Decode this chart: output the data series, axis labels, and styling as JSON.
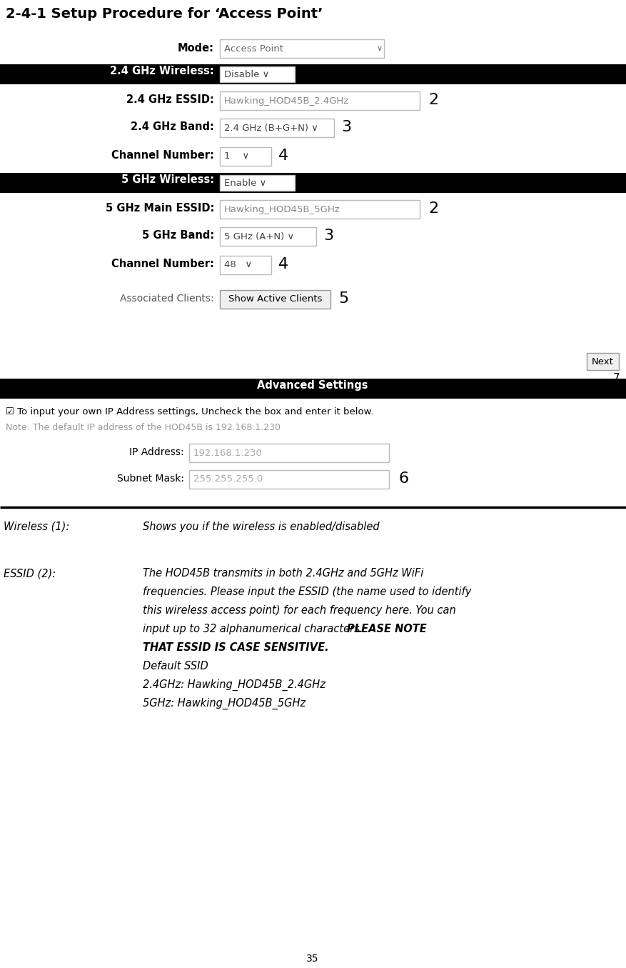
{
  "title": "2-4-1 Setup Procedure for ‘Access Point’",
  "bg_color": "#ffffff",
  "page_number": "35",
  "mode_label": "Mode:",
  "mode_value": "Access Point",
  "mode_dropdown_arrow": "∨",
  "band24_label": "2.4 GHz Wireless:",
  "band24_value": "Disable ∨",
  "essid24_label": "2.4 GHz ESSID:",
  "essid24_value": "Hawking_HOD45B_2.4GHz",
  "band24type_label": "2.4 GHz Band:",
  "band24type_value": "2.4 GHz (B+G+N) ∨",
  "channel24_label": "Channel Number:",
  "channel24_value": "1    ∨",
  "band5_label": "5 GHz Wireless:",
  "band5_value": "Enable ∨",
  "essid5_label": "5 GHz Main ESSID:",
  "essid5_value": "Hawking_HOD45B_5GHz",
  "band5type_label": "5 GHz Band:",
  "band5type_value": "5 GHz (A+N) ∨",
  "channel5_label": "Channel Number:",
  "channel5_value": "48   ∨",
  "clients_label": "Associated Clients:",
  "clients_button": "Show Active Clients",
  "next_button": "Next",
  "advanced_label": "Advanced Settings",
  "checkbox_text": "☑ To input your own IP Address settings, Uncheck the box and enter it below.",
  "note_text": "Note: The default IP address of the HOD45B is 192.168.1.230",
  "ip_label": "IP Address:",
  "ip_value": "192.168.1.230",
  "subnet_label": "Subnet Mask:",
  "subnet_value": "255.255.255.0",
  "desc1_term": "Wireless (1):",
  "desc1_text": "Shows you if the wireless is enabled/disabled",
  "desc2_term": "ESSID (2):",
  "desc2_line1": "The HOD45B transmits in both 2.4GHz and 5GHz WiFi",
  "desc2_line2": "frequencies. Please input the ESSID (the name used to identify",
  "desc2_line3": "this wireless access point) for each frequency here. You can",
  "desc2_line4": "input up to 32 alphanumerical characters. ",
  "desc2_bold": "PLEASE NOTE",
  "desc2_line5": "THAT ESSID IS CASE SENSITIVE.",
  "desc2_line6": "Default SSID",
  "desc2_line7": "2.4GHz: Hawking_HOD45B_2.4GHz",
  "desc2_line8": "5GHz: Hawking_HOD45B_5GHz",
  "black_bar_color": "#000000",
  "black_bar_text_color": "#ffffff",
  "input_border": "#aaaaaa",
  "note_color": "#999999",
  "number_color": "#000000"
}
